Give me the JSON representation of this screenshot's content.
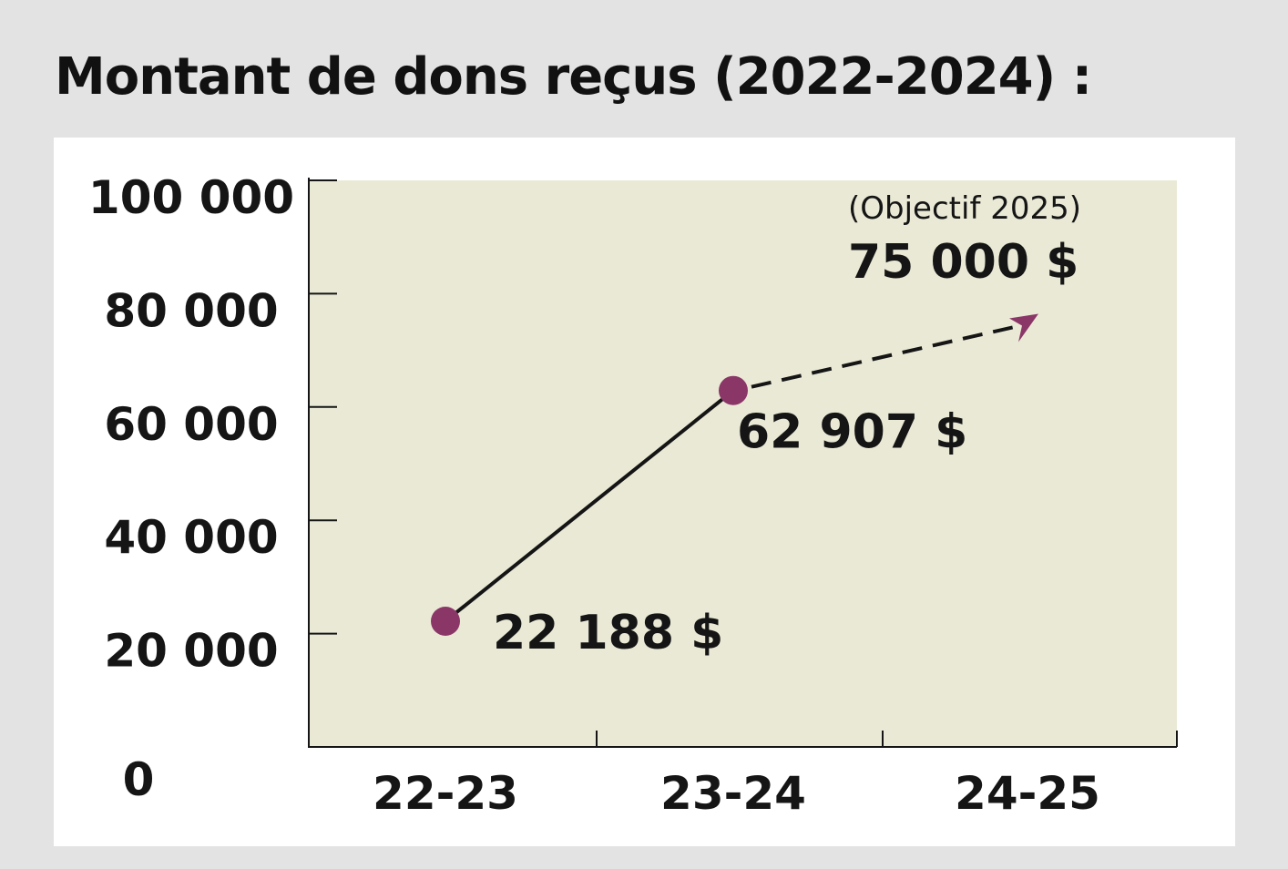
{
  "page": {
    "title": "Montant de dons reçus (2022-2024) :"
  },
  "colors": {
    "page_background": "#e3e3e3",
    "card_background": "#ffffff",
    "plot_background": "#eae9d6",
    "marker": "#8a3768",
    "line": "#151515",
    "text": "#151515"
  },
  "chart_data": {
    "type": "line",
    "title": "Montant de dons reçus (2022-2024) :",
    "categories": [
      "22-23",
      "23-24",
      "24-25"
    ],
    "y_ticks": [
      {
        "value": 0,
        "label": "0"
      },
      {
        "value": 20000,
        "label": "20 000"
      },
      {
        "value": 40000,
        "label": "40 000"
      },
      {
        "value": 60000,
        "label": "60 000"
      },
      {
        "value": 80000,
        "label": "80 000"
      },
      {
        "value": 100000,
        "label": "100 000"
      }
    ],
    "ylim": [
      0,
      100000
    ],
    "series": [
      {
        "points": [
          {
            "category": "22-23",
            "value": 22188,
            "label": "22 188 $"
          },
          {
            "category": "23-24",
            "value": 62907,
            "label": "62 907 $"
          }
        ]
      }
    ],
    "target": {
      "category": "24-25",
      "value": 75000,
      "label": "75 000 $",
      "note": "(Objectif 2025)",
      "style": "dashed-arrow"
    },
    "grid": false,
    "legend": "none"
  }
}
